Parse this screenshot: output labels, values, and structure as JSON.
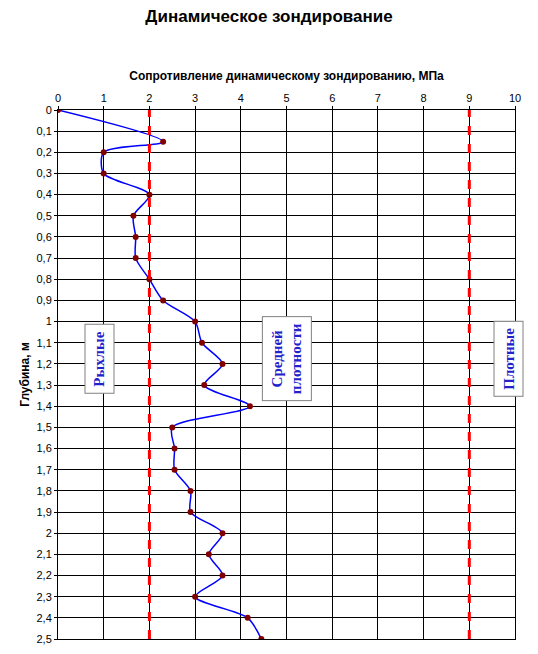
{
  "chart_data": {
    "type": "line",
    "title": "Динамическое зондирование",
    "x_label": "Сопротивление динамическому зондированию, МПа",
    "y_label": "Глубина, м",
    "series": [
      {
        "name": "Сопротивление динамическому зондированию",
        "color": "#0000ff",
        "marker": "circle",
        "line_style": "spline",
        "x": [
          0,
          2.3,
          1.0,
          1.0,
          2.0,
          1.65,
          1.7,
          1.7,
          2.0,
          2.3,
          3.0,
          3.15,
          3.6,
          3.2,
          4.2,
          2.5,
          2.55,
          2.55,
          2.9,
          2.9,
          3.6,
          3.3,
          3.6,
          3.0,
          4.15,
          4.45
        ],
        "y": [
          0,
          0.15,
          0.2,
          0.3,
          0.4,
          0.5,
          0.6,
          0.7,
          0.8,
          0.9,
          1.0,
          1.1,
          1.2,
          1.3,
          1.4,
          1.5,
          1.6,
          1.7,
          1.8,
          1.9,
          2.0,
          2.1,
          2.2,
          2.3,
          2.4,
          2.5
        ]
      }
    ],
    "reference_lines": [
      {
        "value": 2,
        "color": "#ff0000",
        "line_style": "dash"
      },
      {
        "value": 9,
        "color": "#ff0000",
        "line_style": "dash"
      }
    ],
    "annotations": [
      "Рыхлые",
      "Средней плотности",
      "Плотные"
    ],
    "xlim": [
      0,
      10
    ],
    "xticks": [
      0,
      1,
      2,
      3,
      4,
      5,
      6,
      7,
      8,
      9,
      10
    ],
    "ylim": [
      0,
      2.5
    ],
    "yticks": [
      0,
      {
        "value": 0.1,
        "label": "0,1"
      },
      {
        "value": 0.2,
        "label": "0,2"
      },
      {
        "value": 0.3,
        "label": "0,3"
      },
      {
        "value": 0.4,
        "label": "0,4"
      },
      {
        "value": 0.5,
        "label": "0,5"
      },
      {
        "value": 0.6,
        "label": "0,6"
      },
      {
        "value": 0.7,
        "label": "0,7"
      },
      {
        "value": 0.8,
        "label": "0,8"
      },
      {
        "value": 0.9,
        "label": "0,9"
      },
      1,
      {
        "value": 1.1,
        "label": "1,1"
      },
      {
        "value": 1.2,
        "label": "1,2"
      },
      {
        "value": 1.3,
        "label": "1,3"
      },
      {
        "value": 1.4,
        "label": "1,4"
      },
      {
        "value": 1.5,
        "label": "1,5"
      },
      {
        "value": 1.6,
        "label": "1,6"
      },
      {
        "value": 1.7,
        "label": "1,7"
      },
      {
        "value": 1.8,
        "label": "1,8"
      },
      {
        "value": 1.9,
        "label": "1,9"
      },
      2,
      {
        "value": 2.1,
        "label": "2,1"
      },
      {
        "value": 2.2,
        "label": "2,2"
      },
      {
        "value": 2.3,
        "label": "2,3"
      },
      {
        "value": 2.4,
        "label": "2,4"
      },
      {
        "value": 2.5,
        "label": "2,5"
      }
    ],
    "grid": true
  }
}
